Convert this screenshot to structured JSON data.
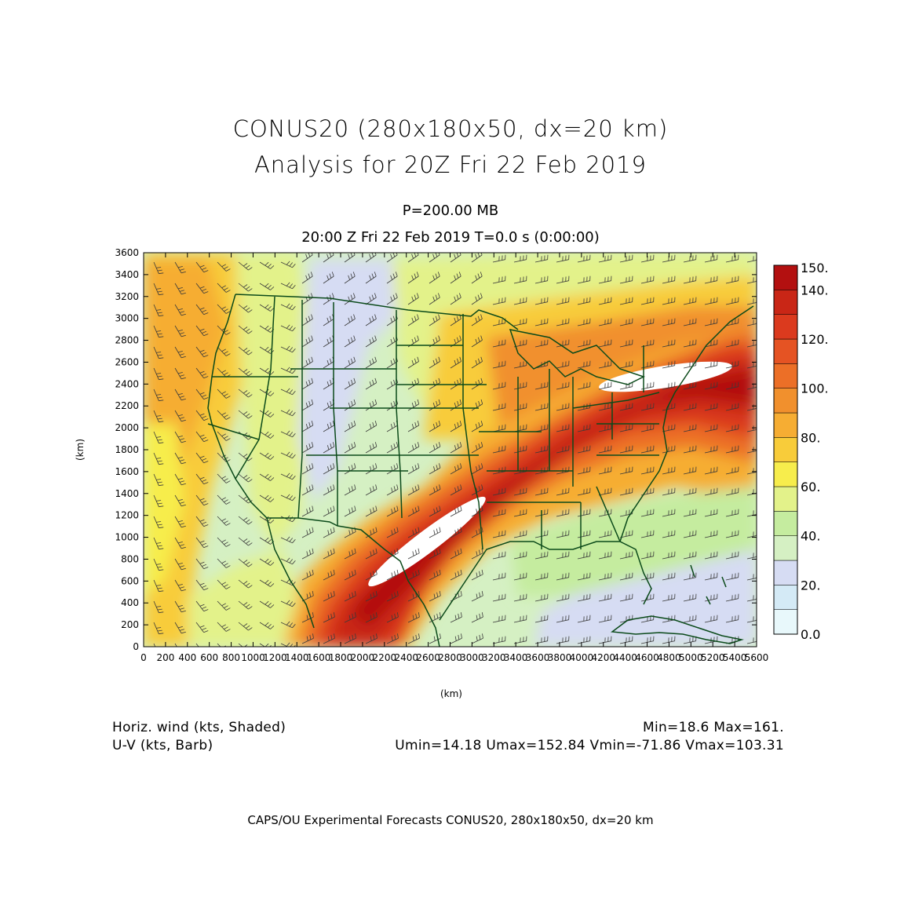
{
  "title": {
    "line1": "CONUS20 (280x180x50, dx=20 km)",
    "line2": "Analysis for 20Z Fri 22 Feb 2019"
  },
  "subtitle": {
    "level": "P=200.00 MB",
    "time": "20:00 Z Fri 22 Feb 2019    T=0.0 s (0:00:00)"
  },
  "chart_data": {
    "type": "heatmap",
    "field": "Horiz. wind (kts, Shaded)",
    "overlay": "U-V (kts, Barb)",
    "xlabel": "(km)",
    "ylabel": "(km)",
    "xlim": [
      0,
      5600
    ],
    "ylim": [
      0,
      3600
    ],
    "x_ticks": [
      0,
      200,
      400,
      600,
      800,
      1000,
      1200,
      1400,
      1600,
      1800,
      2000,
      2200,
      2400,
      2600,
      2800,
      3000,
      3200,
      3400,
      3600,
      3800,
      4000,
      4200,
      4400,
      4600,
      4800,
      5000,
      5200,
      5400,
      5600
    ],
    "y_ticks": [
      0,
      200,
      400,
      600,
      800,
      1000,
      1200,
      1400,
      1600,
      1800,
      2000,
      2200,
      2400,
      2600,
      2800,
      3000,
      3200,
      3400,
      3600
    ],
    "colorbar": {
      "labels": [
        "150.",
        "140.",
        "120.",
        "100.",
        "80.",
        "60.",
        "40.",
        "20.",
        "0.0"
      ],
      "levels": [
        0,
        10,
        20,
        30,
        40,
        50,
        60,
        70,
        80,
        90,
        100,
        110,
        120,
        130,
        140,
        150
      ],
      "colors": [
        "#e8f8fb",
        "#d4eaf6",
        "#d6dcf3",
        "#d5f0c3",
        "#c5ec9f",
        "#e3f28a",
        "#f7ed4c",
        "#f8cc3a",
        "#f6ad33",
        "#f1902d",
        "#ec6f27",
        "#e55323",
        "#db3a1e",
        "#c92616",
        "#b31010"
      ]
    },
    "jet_core": [
      {
        "x": [
          1950,
          2350,
          2700,
          3200,
          3600,
          4100,
          4700,
          5350,
          5600
        ],
        "y": [
          500,
          780,
          1000,
          1300,
          1600,
          1900,
          2250,
          2560,
          2620
        ]
      }
    ],
    "min": "18.6",
    "max": "161."
  },
  "footer": {
    "left1": "Horiz. wind (kts, Shaded)",
    "left2": "U-V (kts, Barb)",
    "right1": "Min=18.6  Max=161.",
    "right2": "Umin=14.18  Umax=152.84  Vmin=-71.86  Vmax=103.31",
    "credit": "CAPS/OU Experimental Forecasts   CONUS20, 280x180x50, dx=20 km"
  },
  "colors": {
    "map_lines": "#0b4a1a",
    "barbs": "#3a3a3a"
  }
}
